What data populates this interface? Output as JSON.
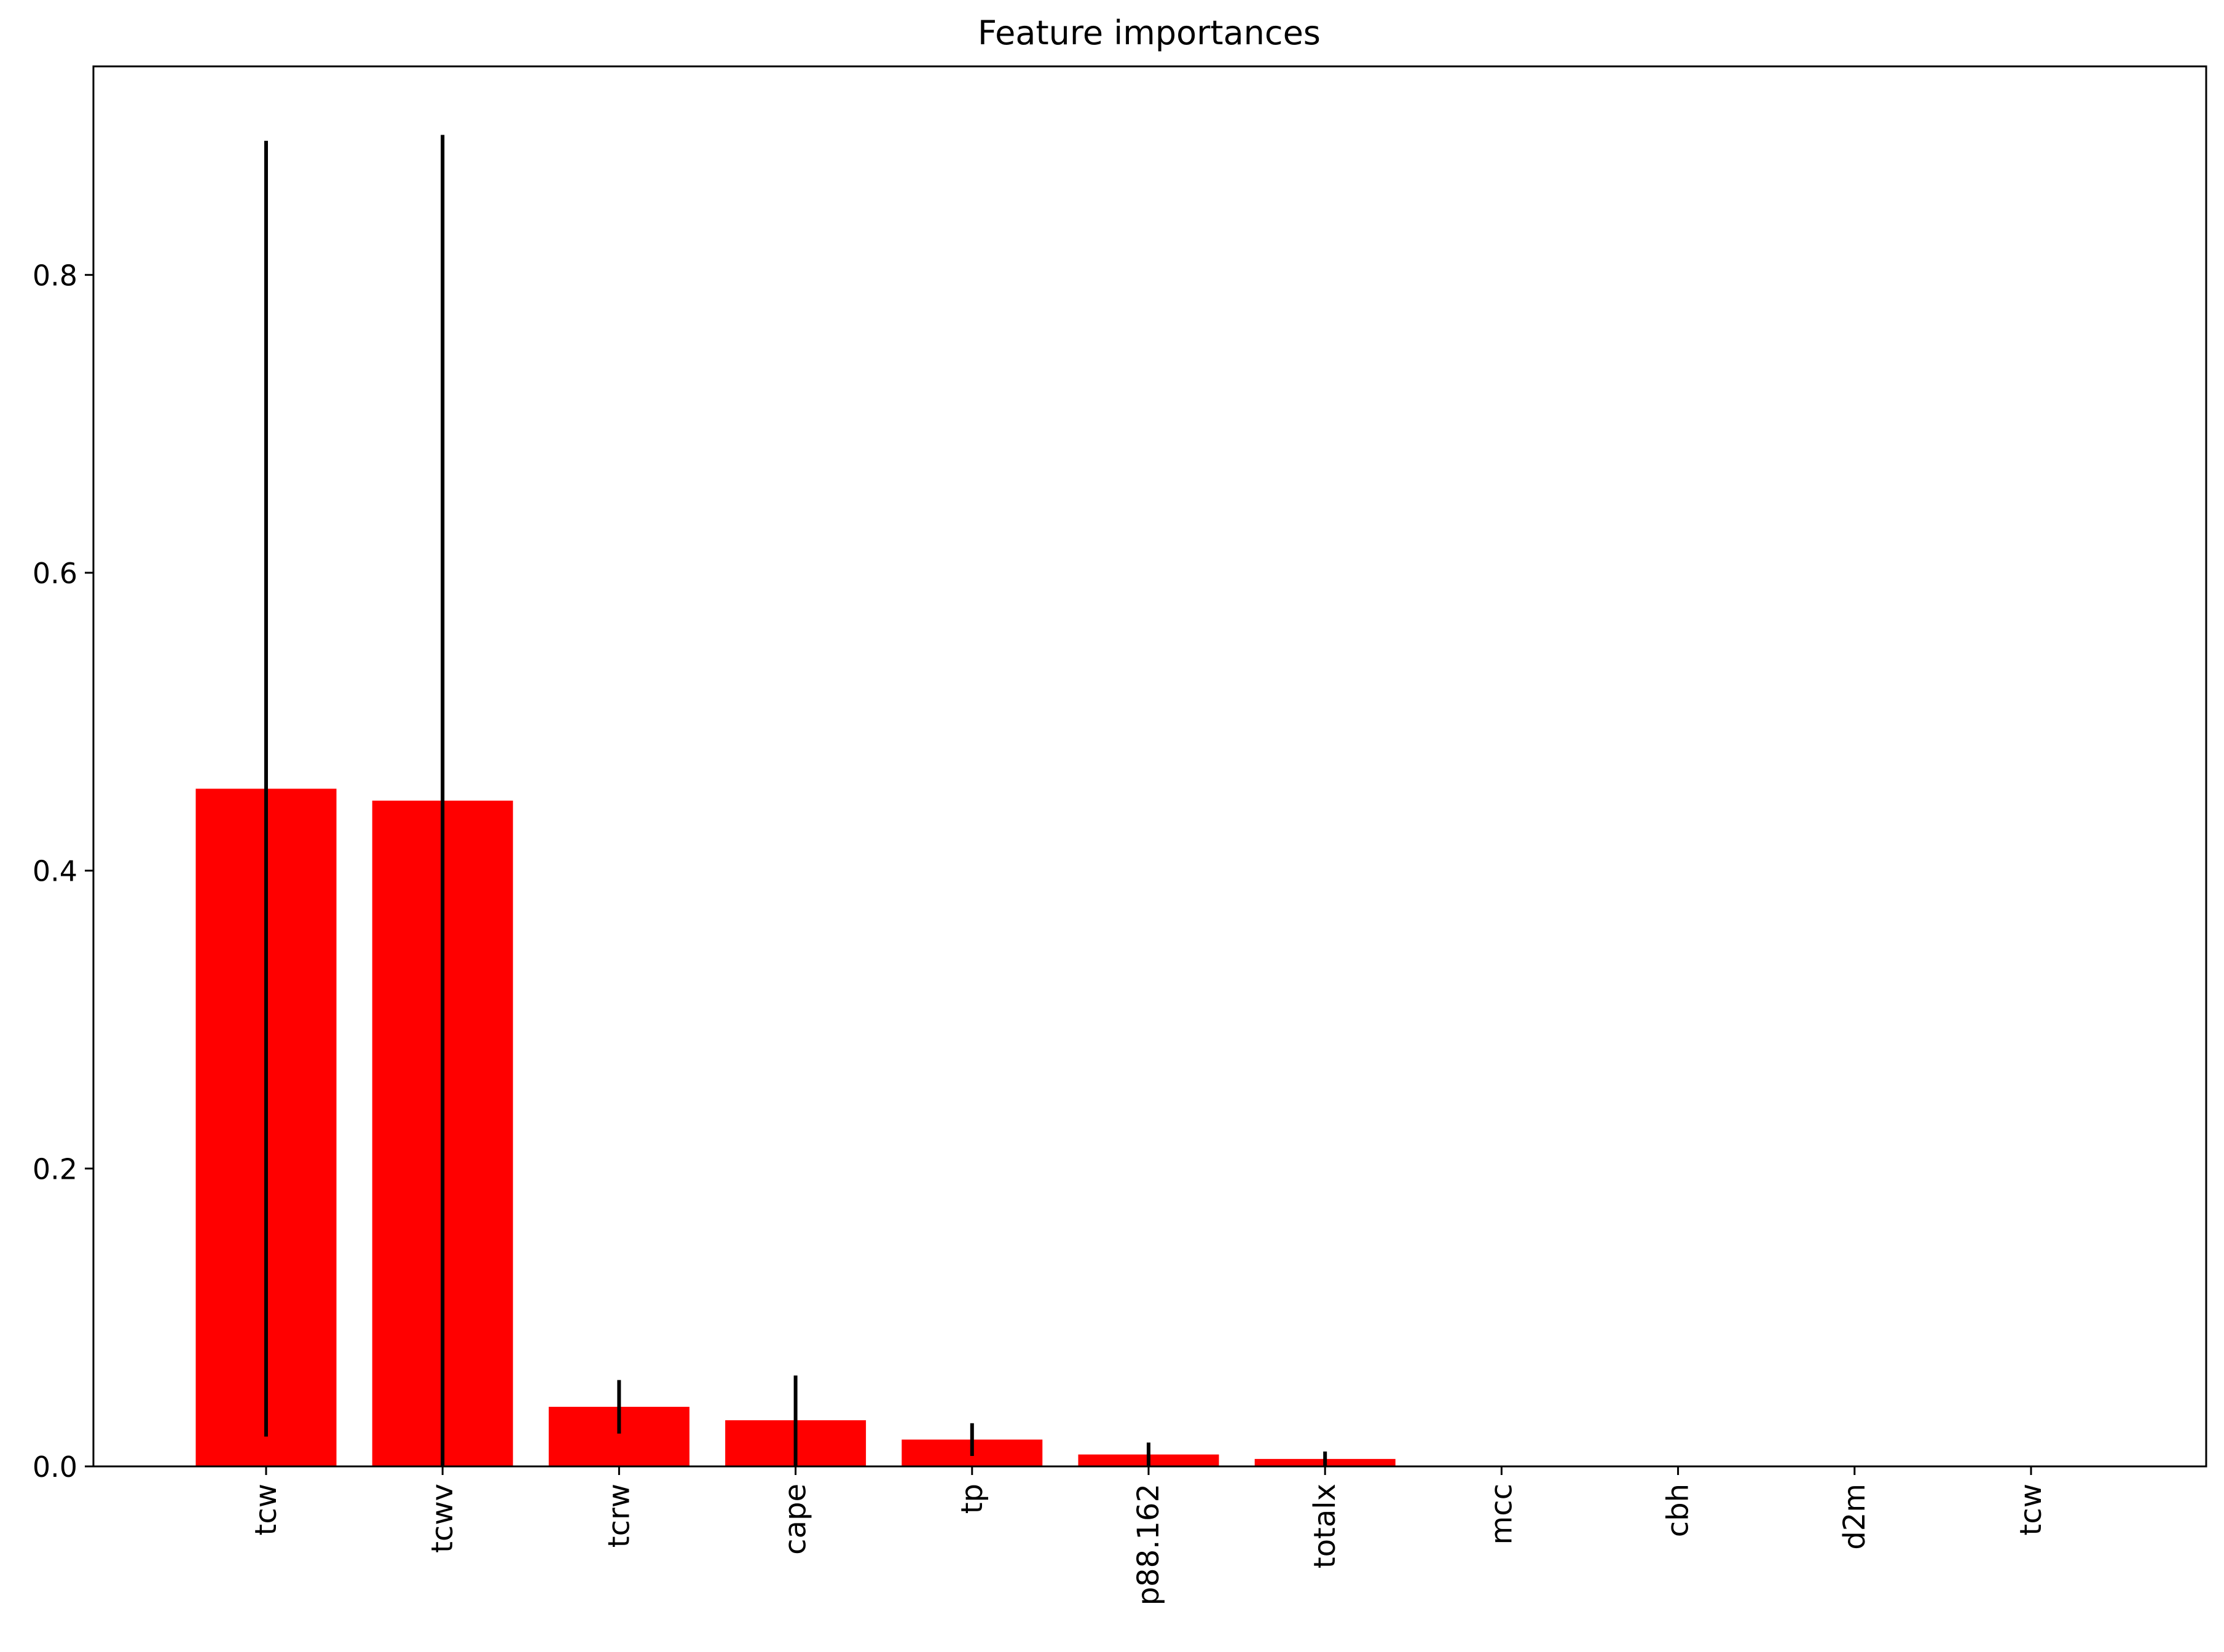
{
  "chart_data": {
    "type": "bar",
    "title": "Feature importances",
    "xlabel": "",
    "ylabel": "",
    "categories": [
      "tcw",
      "tcwv",
      "tcrw",
      "cape",
      "tp",
      "p88.162",
      "totalx",
      "mcc",
      "cbh",
      "d2m",
      "tcw"
    ],
    "values": [
      0.455,
      0.447,
      0.04,
      0.031,
      0.018,
      0.008,
      0.005,
      0.0,
      0.0,
      0.0,
      0.0
    ],
    "error_low": [
      0.02,
      0.0,
      0.022,
      0.0,
      0.007,
      0.0,
      0.0,
      0.0,
      0.0,
      0.0,
      0.0
    ],
    "error_high": [
      0.89,
      0.894,
      0.058,
      0.061,
      0.029,
      0.016,
      0.01,
      0.0,
      0.0,
      0.0,
      0.0
    ],
    "ylim": [
      0,
      0.94
    ],
    "yticks": [
      0.0,
      0.2,
      0.4,
      0.6,
      0.8
    ],
    "ytick_labels": [
      "0.0",
      "0.2",
      "0.4",
      "0.6",
      "0.8"
    ],
    "bar_color": "#ff0000",
    "error_color": "#000000",
    "grid": false,
    "legend": "none"
  }
}
